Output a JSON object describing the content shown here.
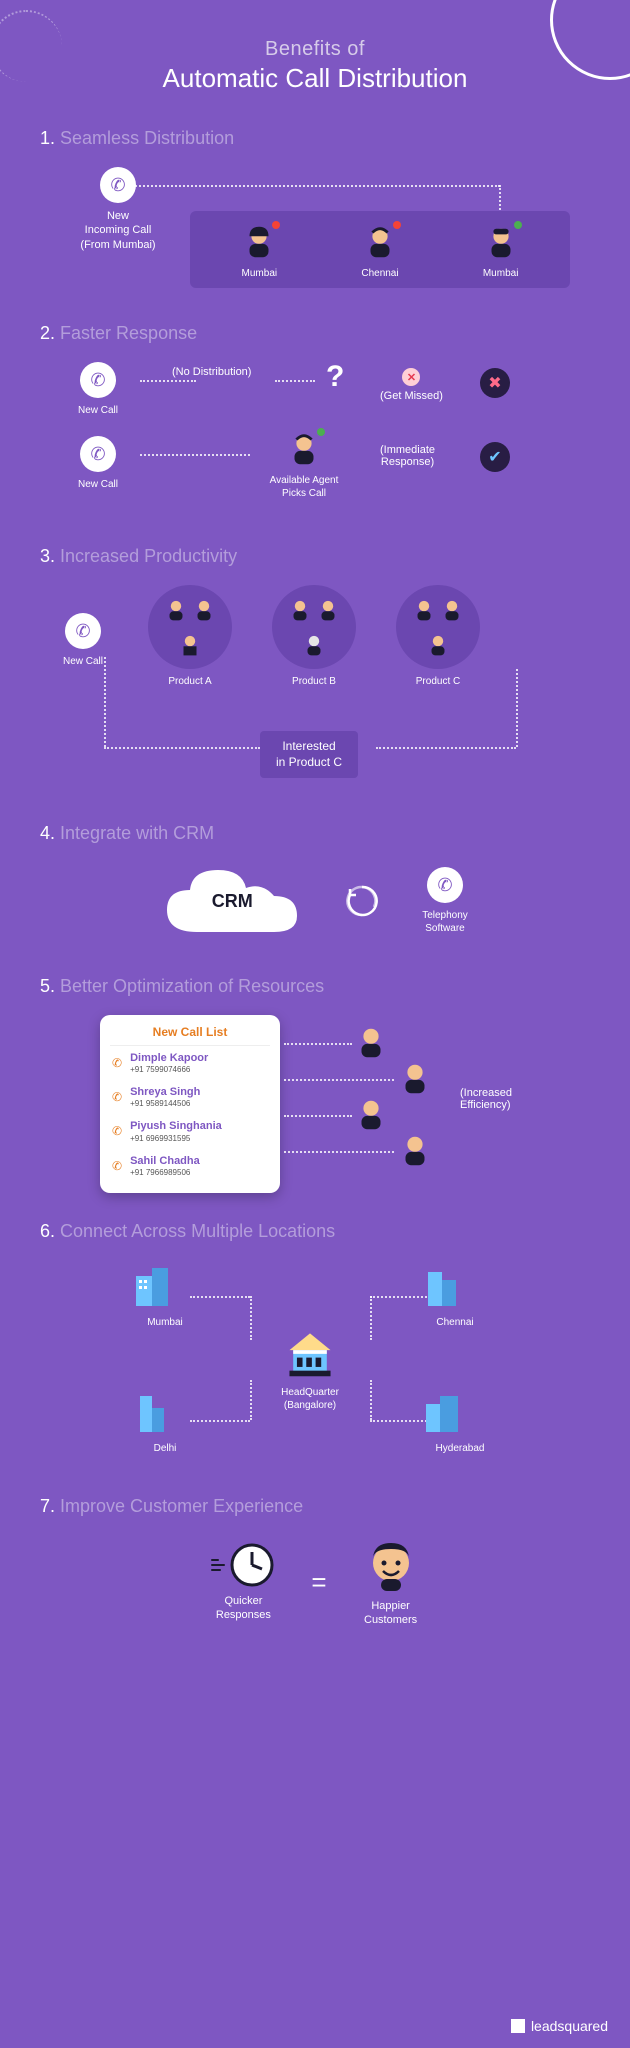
{
  "colors": {
    "bg": "#7e57c2",
    "panel": "#6b47b0",
    "dark": "#281d44",
    "accent_orange": "#e67e22",
    "subtitle": "#b39ddb",
    "ok": "#4caf50",
    "busy": "#f44336",
    "link_blue": "#6ec5ff",
    "pink": "#ff6b8a",
    "navy": "#1a1a2e"
  },
  "header": {
    "line1": "Benefits of",
    "line2": "Automatic Call Distribution"
  },
  "sections": {
    "s1": {
      "num": "1.",
      "title": "Seamless Distribution",
      "caller": "New\nIncoming Call\n(From Mumbai)",
      "agents": [
        "Mumbai",
        "Chennai",
        "Mumbai"
      ]
    },
    "s2": {
      "num": "2.",
      "title": "Faster Response",
      "newcall": "New Call",
      "no_dist": "(No Distribution)",
      "missed": "(Get Missed)",
      "agent_picks": "Available Agent\nPicks Call",
      "immediate": "(Immediate\nResponse)"
    },
    "s3": {
      "num": "3.",
      "title": "Increased Productivity",
      "newcall": "New Call",
      "products": [
        "Product A",
        "Product B",
        "Product C"
      ],
      "route": "Interested\nin Product C"
    },
    "s4": {
      "num": "4.",
      "title": "Integrate with CRM",
      "crm": "CRM",
      "tele": "Telephony\nSoftware"
    },
    "s5": {
      "num": "5.",
      "title": "Better Optimization of Resources",
      "card_title": "New Call List",
      "eff": "(Increased\nEfficiency)",
      "contacts": [
        {
          "name": "Dimple Kapoor",
          "phone": "+91 7599074666"
        },
        {
          "name": "Shreya Singh",
          "phone": "+91 9589144506"
        },
        {
          "name": "Piyush Singhania",
          "phone": "+91 6969931595"
        },
        {
          "name": "Sahil Chadha",
          "phone": "+91 7966989506"
        }
      ]
    },
    "s6": {
      "num": "6.",
      "title": "Connect Across Multiple Locations",
      "hq": "HeadQuarter\n(Bangalore)",
      "cities": {
        "tl": "Mumbai",
        "tr": "Chennai",
        "bl": "Delhi",
        "br": "Hyderabad"
      }
    },
    "s7": {
      "num": "7.",
      "title": "Improve Customer Experience",
      "left": "Quicker\nResponses",
      "right": "Happier\nCustomers"
    }
  },
  "footer": "leadsquared"
}
